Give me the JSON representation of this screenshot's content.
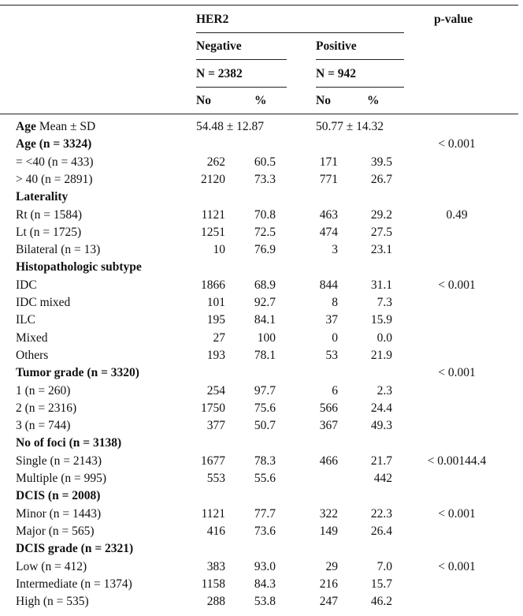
{
  "header": {
    "group": "HER2",
    "pvalue": "p-value",
    "negative": "Negative",
    "positive": "Positive",
    "neg_n": "N = 2382",
    "pos_n": "N = 942",
    "sub": [
      "No",
      "%",
      "No",
      "%"
    ]
  },
  "rows": [
    {
      "label": "Age",
      "note": "Mean ± SD",
      "bold": true,
      "span": true,
      "cells": [
        "54.48 ± 12.87",
        null,
        "50.77 ± 14.32",
        null
      ],
      "p": null
    },
    {
      "label": "Age (n = 3324)",
      "bold": true,
      "cells": [
        null,
        null,
        null,
        null
      ],
      "p": "< 0.001"
    },
    {
      "label": "= <40 (n = 433)",
      "cells": [
        "262",
        "60.5",
        "171",
        "39.5"
      ],
      "p": null
    },
    {
      "label": "> 40 (n = 2891)",
      "cells": [
        "2120",
        "73.3",
        "771",
        "26.7"
      ],
      "p": null
    },
    {
      "label": "Laterality",
      "bold": true,
      "cells": [
        null,
        null,
        null,
        null
      ],
      "p": null
    },
    {
      "label": "Rt (n = 1584)",
      "cells": [
        "1121",
        "70.8",
        "463",
        "29.2"
      ],
      "p": "0.49"
    },
    {
      "label": "Lt (n = 1725)",
      "cells": [
        "1251",
        "72.5",
        "474",
        "27.5"
      ],
      "p": null
    },
    {
      "label": "Bilateral (n = 13)",
      "cells": [
        "10",
        "76.9",
        "3",
        "23.1"
      ],
      "p": null
    },
    {
      "label": "Histopathologic subtype",
      "bold": true,
      "cells": [
        null,
        null,
        null,
        null
      ],
      "p": null
    },
    {
      "label": "IDC",
      "cells": [
        "1866",
        "68.9",
        "844",
        "31.1"
      ],
      "p": "< 0.001"
    },
    {
      "label": "IDC mixed",
      "cells": [
        "101",
        "92.7",
        "8",
        "7.3"
      ],
      "p": null
    },
    {
      "label": "ILC",
      "cells": [
        "195",
        "84.1",
        "37",
        "15.9"
      ],
      "p": null
    },
    {
      "label": "Mixed",
      "cells": [
        "27",
        "100",
        "0",
        "0.0"
      ],
      "p": null
    },
    {
      "label": "Others",
      "cells": [
        "193",
        "78.1",
        "53",
        "21.9"
      ],
      "p": null
    },
    {
      "label": "Tumor grade (n = 3320)",
      "bold": true,
      "cells": [
        null,
        null,
        null,
        null
      ],
      "p": "< 0.001"
    },
    {
      "label": "1 (n = 260)",
      "cells": [
        "254",
        "97.7",
        "6",
        "2.3"
      ],
      "p": null
    },
    {
      "label": "2 (n = 2316)",
      "cells": [
        "1750",
        "75.6",
        "566",
        "24.4"
      ],
      "p": null
    },
    {
      "label": "3 (n = 744)",
      "cells": [
        "377",
        "50.7",
        "367",
        "49.3"
      ],
      "p": null
    },
    {
      "label": "No of foci (n = 3138)",
      "bold": true,
      "cells": [
        null,
        null,
        null,
        null
      ],
      "p": null
    },
    {
      "label": "Single (n = 2143)",
      "cells": [
        "1677",
        "78.3",
        "466",
        "21.7"
      ],
      "p": "< 0.00144.4"
    },
    {
      "label": "Multiple (n = 995)",
      "cells": [
        "553",
        "55.6",
        null,
        "442"
      ],
      "p": null
    },
    {
      "label": "DCIS (n = 2008)",
      "bold": true,
      "cells": [
        null,
        null,
        null,
        null
      ],
      "p": null
    },
    {
      "label": "Minor (n = 1443)",
      "cells": [
        "1121",
        "77.7",
        "322",
        "22.3"
      ],
      "p": "< 0.001"
    },
    {
      "label": "Major (n = 565)",
      "cells": [
        "416",
        "73.6",
        "149",
        "26.4"
      ],
      "p": null
    },
    {
      "label": "DCIS grade (n = 2321)",
      "bold": true,
      "cells": [
        null,
        null,
        null,
        null
      ],
      "p": null
    },
    {
      "label": "Low (n = 412)",
      "cells": [
        "383",
        "93.0",
        "29",
        "7.0"
      ],
      "p": "< 0.001"
    },
    {
      "label": "Intermediate (n = 1374)",
      "cells": [
        "1158",
        "84.3",
        "216",
        "15.7"
      ],
      "p": null
    },
    {
      "label": "High (n = 535)",
      "cells": [
        "288",
        "53.8",
        "247",
        "46.2"
      ],
      "p": null
    }
  ]
}
